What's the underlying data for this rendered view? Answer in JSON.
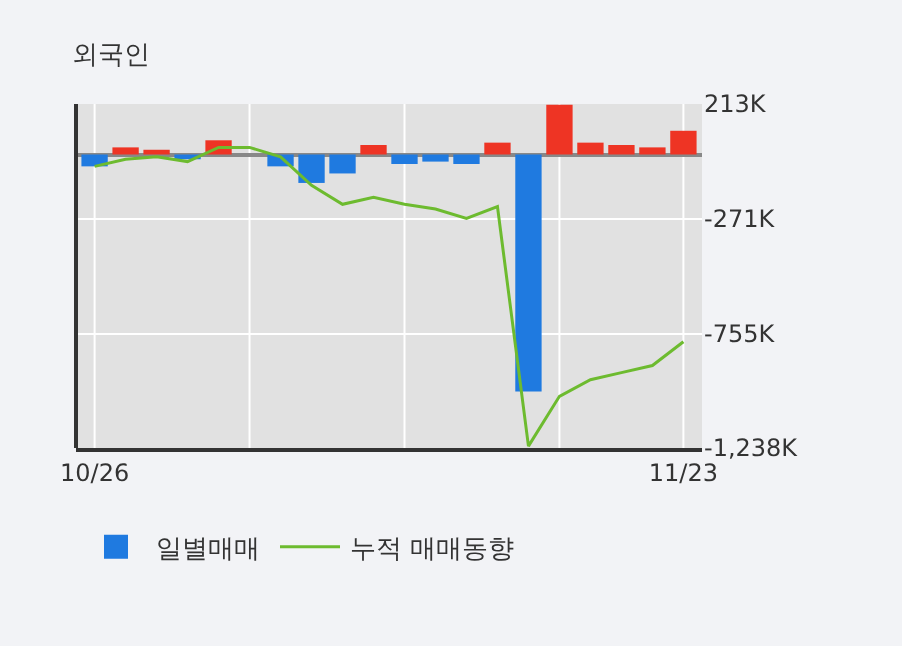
{
  "chart_data": {
    "type": "bar",
    "title": "외국인",
    "categories": [
      "10/26",
      null,
      null,
      null,
      null,
      null,
      null,
      null,
      null,
      null,
      null,
      null,
      null,
      null,
      null,
      null,
      null,
      null,
      null,
      "11/23"
    ],
    "series": [
      {
        "name": "일별매매",
        "values": [
          -50,
          30,
          20,
          -20,
          60,
          0,
          -50,
          -120,
          -80,
          40,
          -40,
          -30,
          -40,
          50,
          -1000,
          210,
          50,
          40,
          30,
          100
        ],
        "colors": [
          "#1f7ae0",
          "#ee3424",
          "#ee3424",
          "#1f7ae0",
          "#ee3424",
          "#ee3424",
          "#1f7ae0",
          "#1f7ae0",
          "#1f7ae0",
          "#ee3424",
          "#1f7ae0",
          "#1f7ae0",
          "#1f7ae0",
          "#ee3424",
          "#1f7ae0",
          "#ee3424",
          "#ee3424",
          "#ee3424",
          "#ee3424",
          "#ee3424"
        ]
      },
      {
        "name": "누적 매매동향",
        "type": "line",
        "color": "#6dbb2f",
        "values": [
          -50,
          -20,
          -10,
          -30,
          30,
          30,
          -10,
          -130,
          -210,
          -180,
          -210,
          -230,
          -270,
          -220,
          -1230,
          -1020,
          -950,
          -920,
          -890,
          -790
        ]
      }
    ],
    "ylim": [
      -1238,
      213
    ],
    "yticks": [
      {
        "value": 213,
        "label": "213K"
      },
      {
        "value": -271,
        "label": "-271K"
      },
      {
        "value": -755,
        "label": "-755K"
      },
      {
        "value": -1238,
        "label": "-1,238K"
      }
    ],
    "grid": true,
    "legend": "bottom",
    "marker": "none",
    "line_style": "solid"
  }
}
